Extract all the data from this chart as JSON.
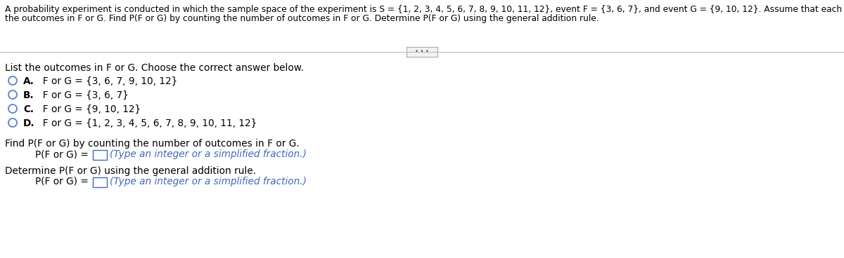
{
  "bg_color": "#ffffff",
  "header_line1": "A probability experiment is conducted in which the sample space of the experiment is S = {1, 2, 3, 4, 5, 6, 7, 8, 9, 10, 11, 12}, event F = {3, 6, 7}, and event G = {9, 10, 12}. Assume that each outcome is equally likely. List",
  "header_line2": "the outcomes in F or G. Find P(F or G) by counting the number of outcomes in F or G. Determine P(F or G) using the general addition rule.",
  "section1_label": "List the outcomes in F or G. Choose the correct answer below.",
  "option_A_bold": "A.",
  "option_A_rest": "  F or G = {3, 6, 7, 9, 10, 12}",
  "option_B_bold": "B.",
  "option_B_rest": "  F or G = {3, 6, 7}",
  "option_C_bold": "C.",
  "option_C_rest": "  F or G = {9, 10, 12}",
  "option_D_bold": "D.",
  "option_D_rest": "  F or G = {1, 2, 3, 4, 5, 6, 7, 8, 9, 10, 11, 12}",
  "section2_label": "Find P(F or G) by counting the number of outcomes in F or G.",
  "pforg_label": "P(F or G) = ",
  "type_hint": "(Type an integer or a simplified fraction.)",
  "section3_label": "Determine P(F or G) using the general addition rule.",
  "pforg_label2": "P(F or G) = ",
  "type_hint2": "(Type an integer or a simplified fraction.)",
  "circle_color": "#5b7fd4",
  "text_color": "#000000",
  "blue_text_color": "#4169b8",
  "header_fontsize": 8.8,
  "body_fontsize": 9.8,
  "option_fontsize": 9.8,
  "bold_fontsize": 9.8,
  "divider_line_color": "#bbbbbb",
  "btn_edge_color": "#aaaaaa",
  "btn_face_color": "#f2f2f2",
  "btn_text_color": "#555555"
}
